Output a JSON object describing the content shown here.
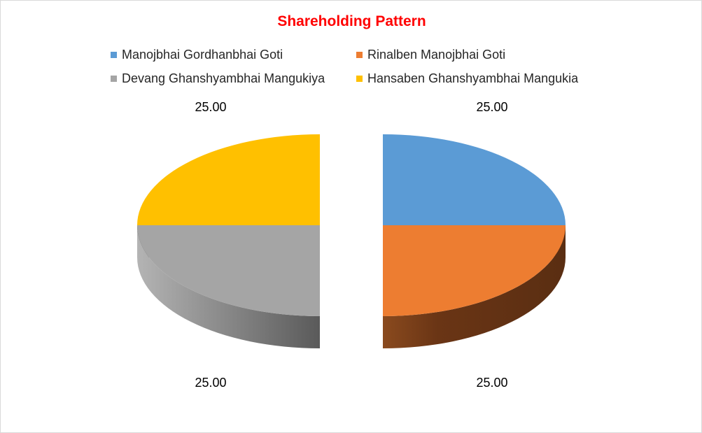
{
  "chart_data": {
    "type": "pie",
    "title": "Shareholding Pattern",
    "legend_position": "top",
    "exploded": true,
    "three_d": true,
    "slices": [
      {
        "label": "Manojbhai Gordhanbhai Goti",
        "value": 25.0,
        "value_label": "25.00",
        "color": "#5b9bd5"
      },
      {
        "label": "Rinalben Manojbhai Goti",
        "value": 25.0,
        "value_label": "25.00",
        "color": "#ed7d31"
      },
      {
        "label": "Devang Ghanshyambhai Mangukiya",
        "value": 25.0,
        "value_label": "25.00",
        "color": "#a5a5a5"
      },
      {
        "label": "Hansaben Ghanshyambhai Mangukia",
        "value": 25.0,
        "value_label": "25.00",
        "color": "#ffc000"
      }
    ],
    "title_color": "#ff0000"
  }
}
